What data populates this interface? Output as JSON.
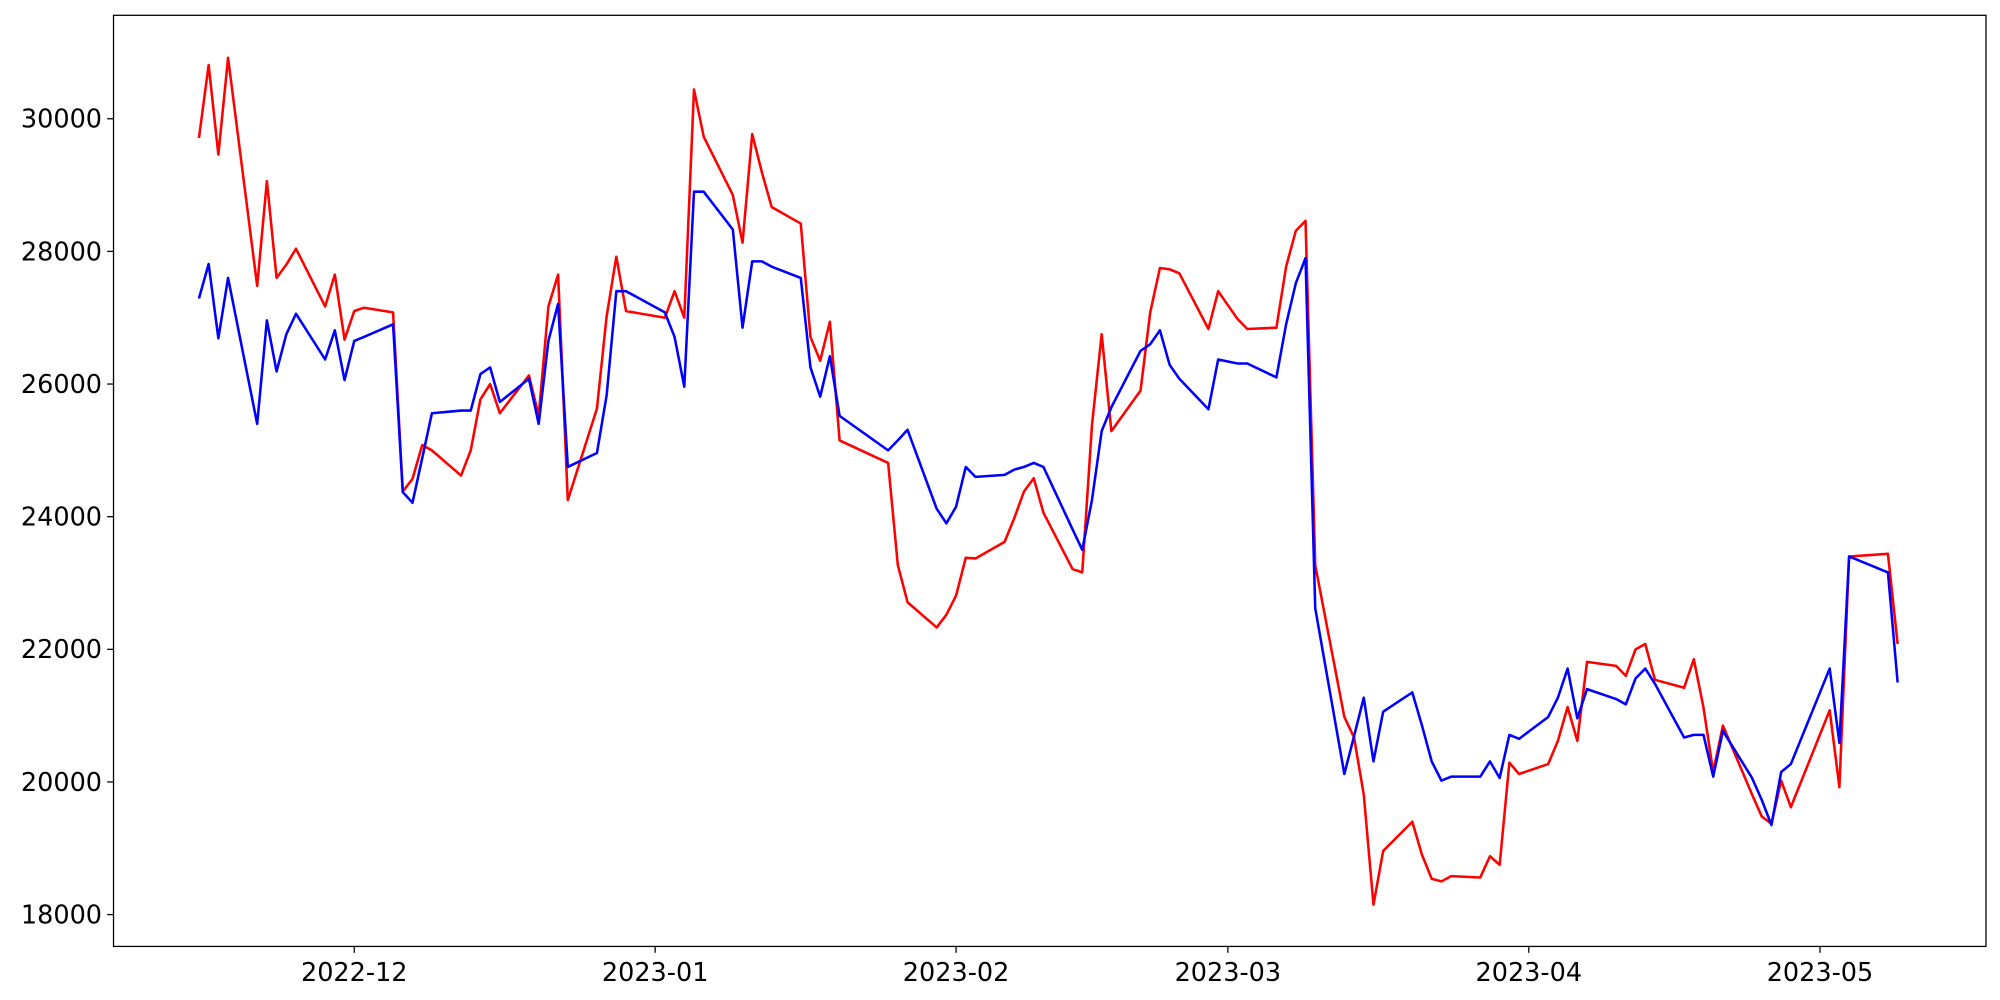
{
  "chart_data": {
    "type": "line",
    "x": [
      -16,
      -15,
      -14,
      -13,
      -10,
      -9,
      -8,
      -7,
      -6,
      -3,
      -2,
      -1,
      0,
      1,
      4,
      5,
      6,
      7,
      8,
      11,
      12,
      13,
      14,
      15,
      18,
      19,
      20,
      21,
      22,
      25,
      26,
      27,
      28,
      32,
      33,
      34,
      35,
      36,
      39,
      40,
      41,
      42,
      43,
      46,
      47,
      48,
      49,
      50,
      55,
      56,
      57,
      60,
      61,
      62,
      63,
      64,
      67,
      68,
      69,
      70,
      71,
      74,
      75,
      76,
      77,
      78,
      81,
      82,
      83,
      84,
      85,
      88,
      89,
      91,
      92,
      95,
      96,
      97,
      98,
      99,
      102,
      103,
      104,
      105,
      106,
      109,
      110,
      111,
      112,
      113,
      116,
      117,
      118,
      119,
      120,
      123,
      124,
      125,
      126,
      127,
      130,
      131,
      132,
      133,
      134,
      137,
      138,
      139,
      140,
      141,
      144,
      145,
      146,
      147,
      148,
      152,
      153,
      154,
      158,
      159
    ],
    "series": [
      {
        "color": "#ff0000",
        "values": [
          29710,
          30810,
          29460,
          30920,
          27480,
          29060,
          27600,
          27800,
          28040,
          27170,
          27650,
          26670,
          27100,
          27150,
          27080,
          24380,
          24570,
          25080,
          25000,
          24620,
          25000,
          25770,
          26000,
          25560,
          26130,
          25520,
          27170,
          27650,
          24250,
          25630,
          27020,
          27920,
          27100,
          27000,
          27400,
          27000,
          30440,
          29730,
          28850,
          28130,
          29770,
          29190,
          28670,
          28420,
          26710,
          26350,
          26940,
          25150,
          24810,
          23270,
          22710,
          22330,
          22520,
          22810,
          23380,
          23370,
          23620,
          23980,
          24380,
          24580,
          24060,
          23210,
          23160,
          25380,
          26750,
          25290,
          25900,
          27080,
          27750,
          27730,
          27670,
          26830,
          27400,
          26980,
          26830,
          26850,
          27770,
          28310,
          28460,
          23270,
          20980,
          20670,
          19810,
          18150,
          18960,
          19400,
          18900,
          18540,
          18500,
          18580,
          18560,
          18880,
          18750,
          20290,
          20120,
          20270,
          20620,
          21130,
          20620,
          21810,
          21750,
          21600,
          22000,
          22080,
          21540,
          21420,
          21850,
          21120,
          20150,
          20850,
          19810,
          19480,
          19370,
          20020,
          19620,
          21080,
          19920,
          23400,
          23440,
          22080
        ]
      },
      {
        "color": "#0000ff",
        "values": [
          27290,
          27810,
          26690,
          27600,
          25400,
          26960,
          26190,
          26750,
          27060,
          26370,
          26810,
          26060,
          26650,
          26710,
          26900,
          24370,
          24210,
          24880,
          25560,
          25600,
          25600,
          26150,
          26250,
          25730,
          26080,
          25400,
          26650,
          27210,
          24750,
          24960,
          25830,
          27400,
          27400,
          27080,
          26710,
          25960,
          28900,
          28900,
          28330,
          26850,
          27850,
          27850,
          27770,
          27600,
          26250,
          25810,
          26420,
          25520,
          25000,
          25150,
          25310,
          24120,
          23900,
          24150,
          24750,
          24600,
          24630,
          24710,
          24750,
          24810,
          24750,
          23810,
          23500,
          24250,
          25290,
          25650,
          26500,
          26600,
          26810,
          26290,
          26080,
          25620,
          26370,
          26310,
          26310,
          26100,
          26900,
          27520,
          27900,
          22620,
          20120,
          20690,
          21270,
          20310,
          21060,
          21350,
          20850,
          20310,
          20020,
          20080,
          20080,
          20310,
          20060,
          20710,
          20650,
          20980,
          21270,
          21710,
          20960,
          21400,
          21250,
          21170,
          21560,
          21710,
          21480,
          20670,
          20710,
          20710,
          20080,
          20770,
          20060,
          19730,
          19350,
          20150,
          20270,
          21710,
          20590,
          23400,
          23160,
          21500
        ]
      }
    ],
    "xlim": [
      -24.8,
      168.1
    ],
    "xticks": [
      {
        "value": 0,
        "label": "2022-12"
      },
      {
        "value": 31,
        "label": "2023-01"
      },
      {
        "value": 62,
        "label": "2023-02"
      },
      {
        "value": 90,
        "label": "2023-03"
      },
      {
        "value": 121,
        "label": "2023-04"
      },
      {
        "value": 151,
        "label": "2023-05"
      }
    ],
    "ylim": [
      17520,
      31560
    ],
    "yticks": [
      18000,
      20000,
      22000,
      24000,
      26000,
      28000,
      30000
    ]
  }
}
